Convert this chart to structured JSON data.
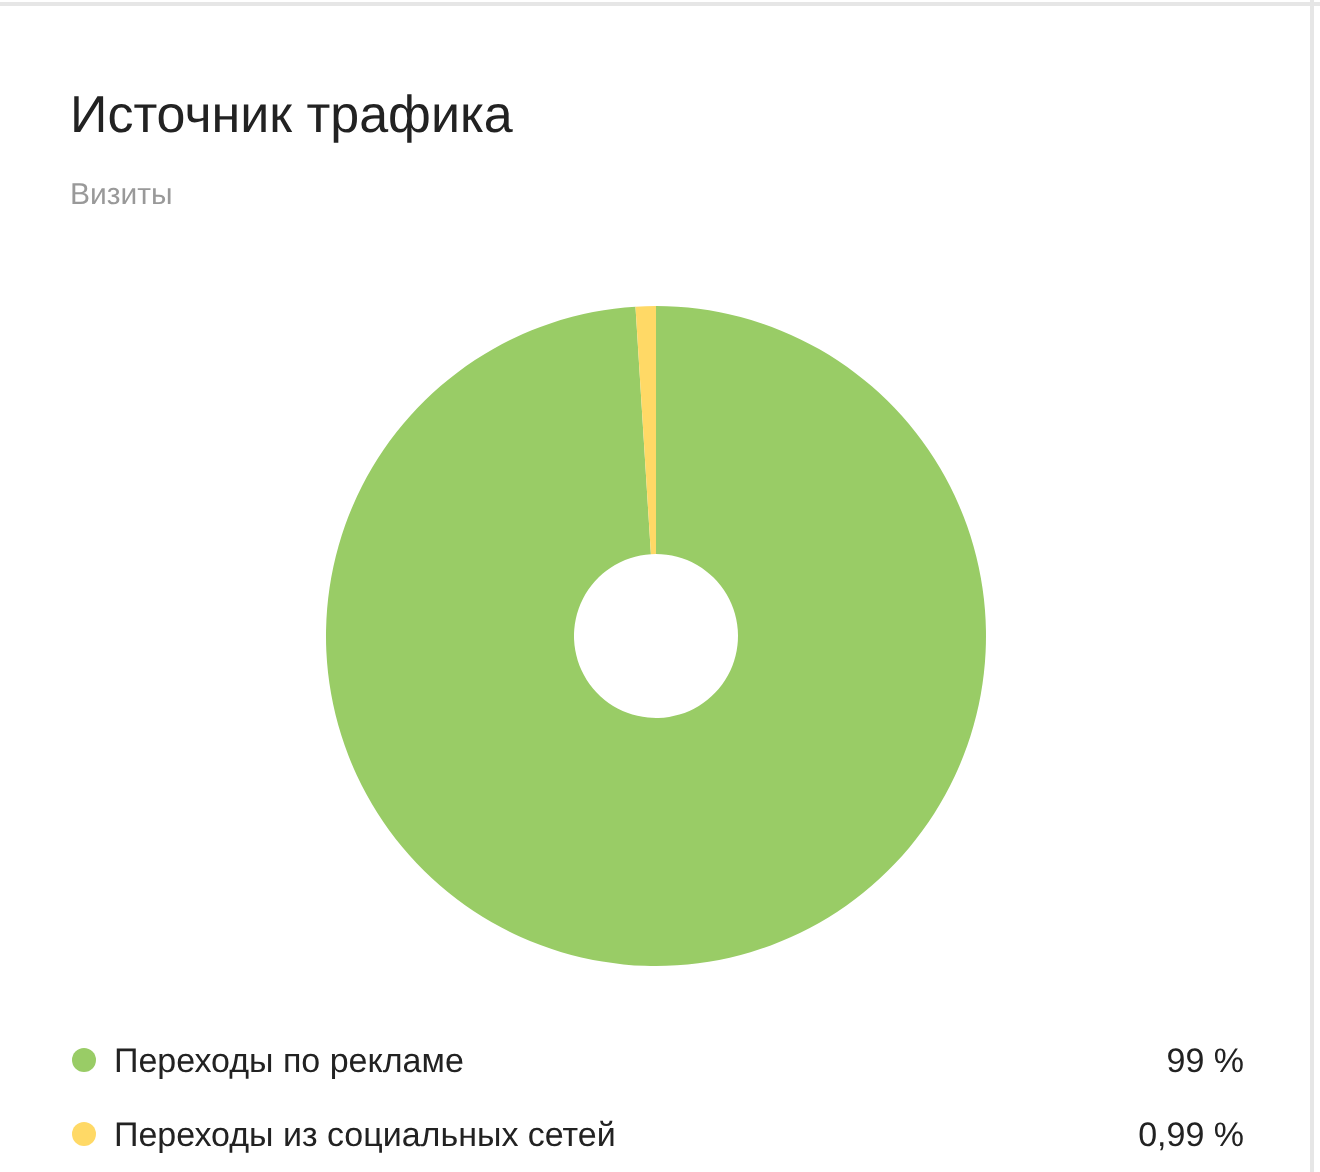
{
  "chart_data": {
    "type": "donut",
    "title": "Источник трафика",
    "subtitle": "Визиты",
    "categories": [
      "Переходы по рекламе",
      "Переходы из социальных сетей"
    ],
    "values": [
      99,
      0.99
    ],
    "colors": [
      "#99cc66",
      "#ffd966"
    ],
    "value_labels": [
      "99 %",
      "0,99 %"
    ],
    "legend": "bottom"
  }
}
